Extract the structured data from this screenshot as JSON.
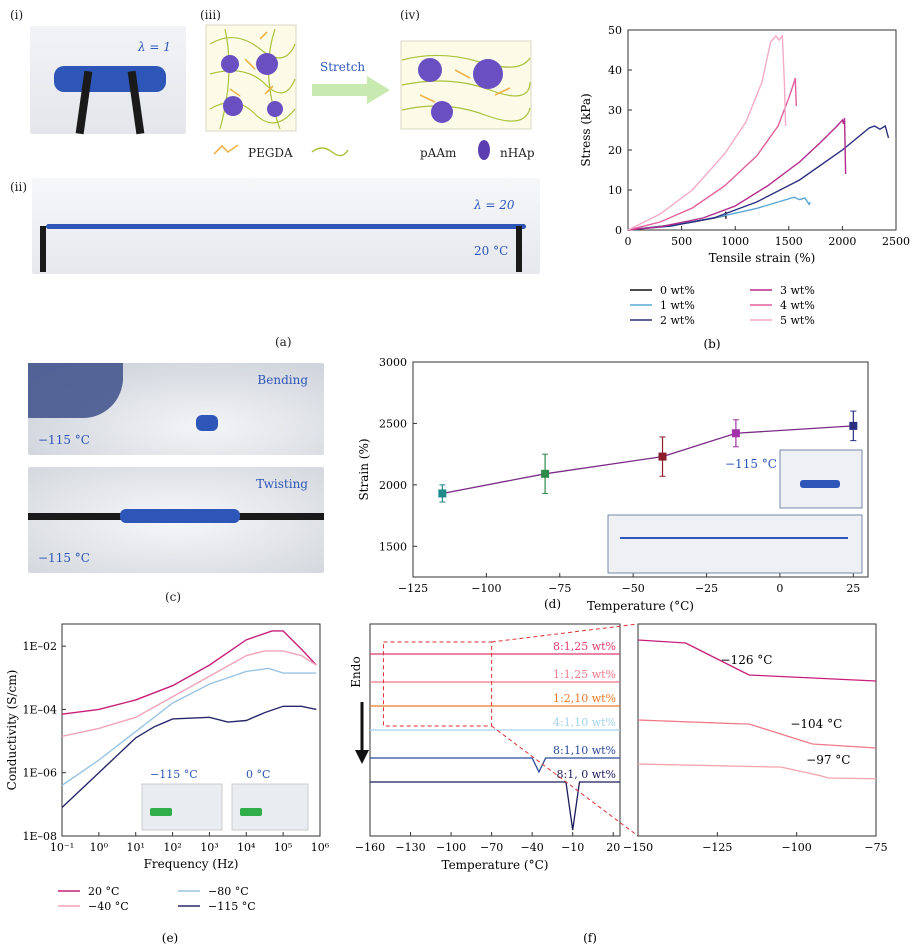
{
  "panel_a": {
    "label": "(a)",
    "sub_i": "(i)",
    "sub_ii": "(ii)",
    "sub_iii": "(iii)",
    "sub_iv": "(iv)",
    "lambda1": "λ = 1",
    "lambda20": "λ = 20",
    "temp": "20 °C",
    "stretch": "Stretch",
    "legend": [
      "PEGDA",
      "pAAm",
      "nHAp"
    ]
  },
  "panel_c": {
    "label": "(c)",
    "bending": "Bending",
    "twisting": "Twisting",
    "temp1": "−115 °C",
    "temp2": "−115 °C"
  },
  "chart_data": [
    {
      "id": "b",
      "label": "(b)",
      "type": "line",
      "xlabel": "Tensile strain (%)",
      "ylabel": "Stress (kPa)",
      "xlim": [
        0,
        2500
      ],
      "ylim": [
        0,
        50
      ],
      "xticks": [
        0,
        500,
        1000,
        1500,
        2000,
        2500
      ],
      "yticks": [
        0,
        10,
        20,
        30,
        40,
        50
      ],
      "series": [
        {
          "name": "0 wt%",
          "color": "#111111",
          "points": [
            [
              0,
              0
            ],
            [
              200,
              0.6
            ],
            [
              400,
              1.2
            ],
            [
              600,
              2
            ],
            [
              800,
              3
            ],
            [
              910,
              3.6
            ],
            [
              912,
              4.6
            ],
            [
              914,
              2.8
            ]
          ]
        },
        {
          "name": "1 wt%",
          "color": "#5aa7d6",
          "points": [
            [
              0,
              0
            ],
            [
              300,
              0.9
            ],
            [
              600,
              2
            ],
            [
              900,
              3.6
            ],
            [
              1200,
              5.4
            ],
            [
              1400,
              7
            ],
            [
              1550,
              8.2
            ],
            [
              1600,
              7.6
            ],
            [
              1650,
              8
            ],
            [
              1690,
              6.4
            ],
            [
              1700,
              7
            ]
          ]
        },
        {
          "name": "2 wt%",
          "color": "#2b2f7f",
          "points": [
            [
              0,
              0
            ],
            [
              400,
              1
            ],
            [
              800,
              3
            ],
            [
              1200,
              7
            ],
            [
              1600,
              12.5
            ],
            [
              2000,
              20
            ],
            [
              2250,
              25.5
            ],
            [
              2300,
              26
            ],
            [
              2350,
              25.2
            ],
            [
              2400,
              26
            ],
            [
              2430,
              23
            ]
          ]
        },
        {
          "name": "3 wt%",
          "color": "#b42a8c",
          "points": [
            [
              0,
              0
            ],
            [
              300,
              0.8
            ],
            [
              700,
              3
            ],
            [
              1000,
              6
            ],
            [
              1300,
              11
            ],
            [
              1600,
              17
            ],
            [
              1800,
              22
            ],
            [
              1950,
              26
            ],
            [
              2000,
              27.5
            ],
            [
              2010,
              26.5
            ],
            [
              2020,
              28
            ],
            [
              2030,
              14
            ]
          ]
        },
        {
          "name": "4 wt%",
          "color": "#e2609e",
          "points": [
            [
              0,
              0
            ],
            [
              300,
              2
            ],
            [
              600,
              5.5
            ],
            [
              900,
              11
            ],
            [
              1200,
              18.5
            ],
            [
              1400,
              26
            ],
            [
              1500,
              33
            ],
            [
              1550,
              37
            ],
            [
              1560,
              38
            ],
            [
              1570,
              31
            ]
          ]
        },
        {
          "name": "5 wt%",
          "color": "#f3aac8",
          "points": [
            [
              0,
              0
            ],
            [
              300,
              4
            ],
            [
              600,
              10
            ],
            [
              900,
              19
            ],
            [
              1100,
              27
            ],
            [
              1250,
              37
            ],
            [
              1330,
              47
            ],
            [
              1380,
              48.5
            ],
            [
              1410,
              47.5
            ],
            [
              1440,
              48.5
            ],
            [
              1460,
              36
            ],
            [
              1470,
              26
            ]
          ]
        }
      ]
    },
    {
      "id": "d",
      "label": "(d)",
      "type": "scatter",
      "xlabel": "Temperature (°C)",
      "ylabel": "Strain (%)",
      "xlim": [
        -125,
        30
      ],
      "ylim": [
        1250,
        3000
      ],
      "xticks": [
        -125,
        -100,
        -75,
        -50,
        -25,
        0,
        25
      ],
      "yticks": [
        1500,
        2000,
        2500,
        3000
      ],
      "annotation": "−115 °C",
      "points": [
        {
          "x": -115,
          "y": 1930,
          "err": 70,
          "color": "#1e8a8a"
        },
        {
          "x": -80,
          "y": 2090,
          "err": 160,
          "color": "#2e8b4a"
        },
        {
          "x": -40,
          "y": 2230,
          "err": 160,
          "color": "#8b1e2a"
        },
        {
          "x": -15,
          "y": 2420,
          "err": 110,
          "color": "#a230a8"
        },
        {
          "x": 25,
          "y": 2480,
          "err": 120,
          "color": "#2b2f7f"
        }
      ]
    },
    {
      "id": "e",
      "label": "(e)",
      "type": "line",
      "xlabel": "Frequency (Hz)",
      "ylabel": "Conductivity (S/cm)",
      "xscale": "log",
      "yscale": "log",
      "xlim": [
        -1,
        6
      ],
      "ylim": [
        -8,
        -1.3
      ],
      "xticks": [
        "10⁻¹",
        "10⁰",
        "10¹",
        "10²",
        "10³",
        "10⁴",
        "10⁵",
        "10⁶"
      ],
      "yticks": [
        "1E–08",
        "1E–06",
        "1E–04",
        "1E–02"
      ],
      "photo_labels": [
        "−115 °C",
        "0 °C"
      ],
      "series": [
        {
          "name": "20 °C",
          "color": "#c81e7a",
          "points": [
            [
              -1,
              -4.15
            ],
            [
              0,
              -4
            ],
            [
              1,
              -3.7
            ],
            [
              2,
              -3.25
            ],
            [
              3,
              -2.6
            ],
            [
              4,
              -1.8
            ],
            [
              4.7,
              -1.52
            ],
            [
              5,
              -1.52
            ],
            [
              5.5,
              -2.1
            ],
            [
              5.9,
              -2.6
            ]
          ]
        },
        {
          "name": "−40 °C",
          "color": "#f0a4b8",
          "points": [
            [
              -1,
              -4.85
            ],
            [
              0,
              -4.6
            ],
            [
              1,
              -4.25
            ],
            [
              2,
              -3.6
            ],
            [
              3,
              -2.95
            ],
            [
              4,
              -2.3
            ],
            [
              4.5,
              -2.15
            ],
            [
              5,
              -2.15
            ],
            [
              5.5,
              -2.3
            ],
            [
              5.9,
              -2.6
            ]
          ]
        },
        {
          "name": "−80 °C",
          "color": "#9ac4e3",
          "points": [
            [
              -1,
              -6.4
            ],
            [
              0,
              -5.6
            ],
            [
              1,
              -4.7
            ],
            [
              2,
              -3.8
            ],
            [
              3,
              -3.2
            ],
            [
              4,
              -2.8
            ],
            [
              4.6,
              -2.7
            ],
            [
              5,
              -2.85
            ],
            [
              5.5,
              -2.85
            ],
            [
              5.9,
              -2.85
            ]
          ]
        },
        {
          "name": "−115 °C",
          "color": "#27286b",
          "points": [
            [
              -1,
              -7.1
            ],
            [
              0,
              -6
            ],
            [
              1,
              -4.9
            ],
            [
              1.5,
              -4.55
            ],
            [
              2,
              -4.3
            ],
            [
              3,
              -4.25
            ],
            [
              3.5,
              -4.4
            ],
            [
              4,
              -4.35
            ],
            [
              4.5,
              -4.1
            ],
            [
              5,
              -3.9
            ],
            [
              5.5,
              -3.9
            ],
            [
              5.9,
              -4
            ]
          ]
        }
      ]
    },
    {
      "id": "f",
      "label": "(f)",
      "type": "line",
      "xlabel": "Temperature (°C)",
      "ylabel": "Endo",
      "xlim": [
        -160,
        25
      ],
      "xticks": [
        -160,
        -130,
        -100,
        -70,
        -40,
        -10,
        20
      ],
      "zoom_xlim": [
        -150,
        -75
      ],
      "zoom_xticks": [
        -150,
        -125,
        -100,
        -75
      ],
      "series": [
        {
          "name": "8:1,25 wt%",
          "color": "#e23a6b"
        },
        {
          "name": "1:1,25 wt%",
          "color": "#f07a88"
        },
        {
          "name": "1:2,10 wt%",
          "color": "#f07a28"
        },
        {
          "name": "4:1,10 wt%",
          "color": "#a5d2ec"
        },
        {
          "name": "8:1,10 wt%",
          "color": "#2b4a9b"
        },
        {
          "name": "8:1, 0 wt%",
          "color": "#1b1b5a"
        }
      ],
      "annotations": [
        "−126 °C",
        "−104 °C",
        "−97 °C"
      ]
    }
  ]
}
